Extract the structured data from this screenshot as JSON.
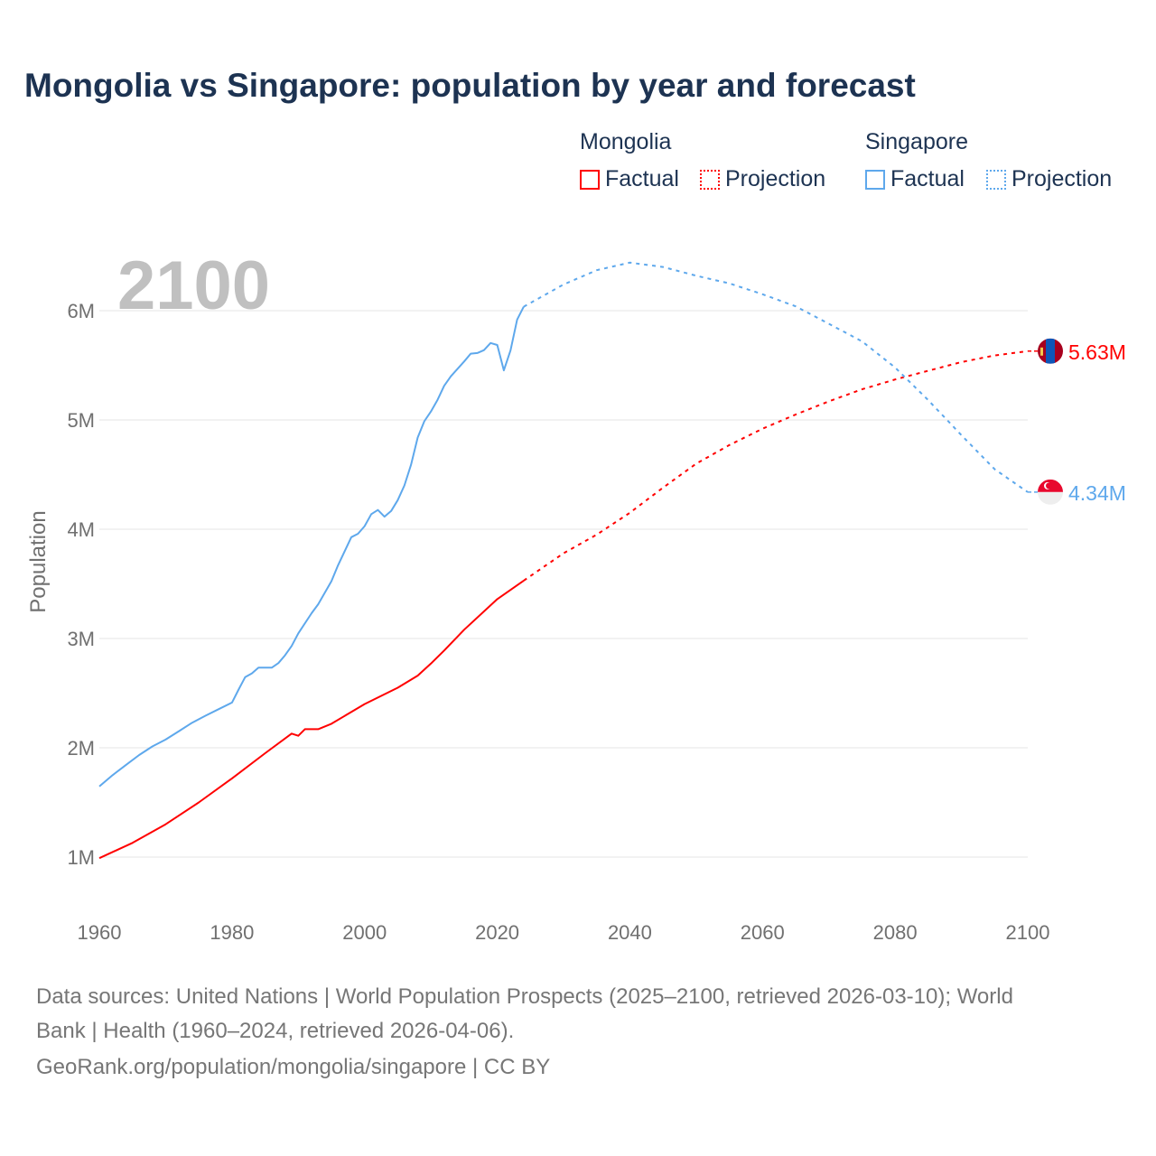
{
  "title": "Mongolia vs Singapore: population by year and forecast",
  "legend": {
    "groups": [
      {
        "name": "Mongolia",
        "factual": "Factual",
        "projection": "Projection",
        "color": "#ff0000"
      },
      {
        "name": "Singapore",
        "factual": "Factual",
        "projection": "Projection",
        "color": "#5ea8ec"
      }
    ]
  },
  "chart_data": {
    "type": "line",
    "title": "Mongolia vs Singapore: population by year and forecast",
    "year_label": "2100",
    "xlabel": "",
    "ylabel": "Population",
    "xlim": [
      1960,
      2100
    ],
    "ylim": [
      0.5,
      6.8
    ],
    "xticks": [
      1960,
      1980,
      2000,
      2020,
      2040,
      2060,
      2080,
      2100
    ],
    "xtick_labels": [
      "1960",
      "1980",
      "2000",
      "2020",
      "2040",
      "2060",
      "2080",
      "2100"
    ],
    "yticks": [
      1,
      2,
      3,
      4,
      5,
      6
    ],
    "ytick_labels": [
      "1M",
      "2M",
      "3M",
      "4M",
      "5M",
      "6M"
    ],
    "grid": true,
    "projection_start": 2024,
    "series": [
      {
        "name": "Mongolia",
        "color": "#ff0000",
        "end_label": "5.63M",
        "points": [
          [
            1960,
            0.99
          ],
          [
            1965,
            1.13
          ],
          [
            1970,
            1.3
          ],
          [
            1975,
            1.5
          ],
          [
            1980,
            1.72
          ],
          [
            1985,
            1.95
          ],
          [
            1989,
            2.13
          ],
          [
            1990,
            2.11
          ],
          [
            1991,
            2.17
          ],
          [
            1993,
            2.17
          ],
          [
            1995,
            2.22
          ],
          [
            2000,
            2.4
          ],
          [
            2005,
            2.55
          ],
          [
            2008,
            2.66
          ],
          [
            2010,
            2.77
          ],
          [
            2012,
            2.89
          ],
          [
            2015,
            3.08
          ],
          [
            2020,
            3.36
          ],
          [
            2024,
            3.53
          ],
          [
            2030,
            3.78
          ],
          [
            2035,
            3.95
          ],
          [
            2040,
            4.15
          ],
          [
            2045,
            4.38
          ],
          [
            2050,
            4.6
          ],
          [
            2055,
            4.77
          ],
          [
            2060,
            4.92
          ],
          [
            2065,
            5.05
          ],
          [
            2070,
            5.17
          ],
          [
            2075,
            5.28
          ],
          [
            2080,
            5.37
          ],
          [
            2085,
            5.45
          ],
          [
            2090,
            5.53
          ],
          [
            2095,
            5.59
          ],
          [
            2100,
            5.63
          ]
        ]
      },
      {
        "name": "Singapore",
        "color": "#5ea8ec",
        "end_label": "4.34M",
        "points": [
          [
            1960,
            1.646
          ],
          [
            1962,
            1.75
          ],
          [
            1964,
            1.842
          ],
          [
            1966,
            1.934
          ],
          [
            1968,
            2.012
          ],
          [
            1970,
            2.075
          ],
          [
            1972,
            2.152
          ],
          [
            1974,
            2.23
          ],
          [
            1976,
            2.293
          ],
          [
            1978,
            2.354
          ],
          [
            1980,
            2.414
          ],
          [
            1981,
            2.533
          ],
          [
            1982,
            2.647
          ],
          [
            1983,
            2.681
          ],
          [
            1984,
            2.733
          ],
          [
            1986,
            2.733
          ],
          [
            1987,
            2.775
          ],
          [
            1988,
            2.846
          ],
          [
            1989,
            2.931
          ],
          [
            1990,
            3.047
          ],
          [
            1992,
            3.231
          ],
          [
            1993,
            3.313
          ],
          [
            1995,
            3.525
          ],
          [
            1996,
            3.67
          ],
          [
            1998,
            3.927
          ],
          [
            1999,
            3.959
          ],
          [
            2000,
            4.028
          ],
          [
            2001,
            4.138
          ],
          [
            2002,
            4.176
          ],
          [
            2003,
            4.115
          ],
          [
            2004,
            4.167
          ],
          [
            2005,
            4.266
          ],
          [
            2006,
            4.401
          ],
          [
            2007,
            4.589
          ],
          [
            2008,
            4.839
          ],
          [
            2009,
            4.988
          ],
          [
            2010,
            5.077
          ],
          [
            2011,
            5.184
          ],
          [
            2012,
            5.312
          ],
          [
            2013,
            5.399
          ],
          [
            2015,
            5.535
          ],
          [
            2016,
            5.607
          ],
          [
            2017,
            5.612
          ],
          [
            2018,
            5.639
          ],
          [
            2019,
            5.704
          ],
          [
            2020,
            5.686
          ],
          [
            2021,
            5.454
          ],
          [
            2022,
            5.637
          ],
          [
            2023,
            5.918
          ],
          [
            2024,
            6.036
          ],
          [
            2030,
            6.24
          ],
          [
            2035,
            6.37
          ],
          [
            2040,
            6.44
          ],
          [
            2045,
            6.4
          ],
          [
            2050,
            6.32
          ],
          [
            2055,
            6.25
          ],
          [
            2060,
            6.15
          ],
          [
            2065,
            6.04
          ],
          [
            2070,
            5.88
          ],
          [
            2075,
            5.72
          ],
          [
            2080,
            5.48
          ],
          [
            2085,
            5.18
          ],
          [
            2090,
            4.86
          ],
          [
            2095,
            4.55
          ],
          [
            2100,
            4.34
          ]
        ]
      }
    ]
  },
  "footer": {
    "line1": "Data sources: United Nations | World Population Prospects (2025–2100, retrieved 2026-03-10); World",
    "line2": "Bank | Health (1960–2024, retrieved 2026-04-06).",
    "line3": "GeoRank.org/population/mongolia/singapore | CC BY"
  }
}
